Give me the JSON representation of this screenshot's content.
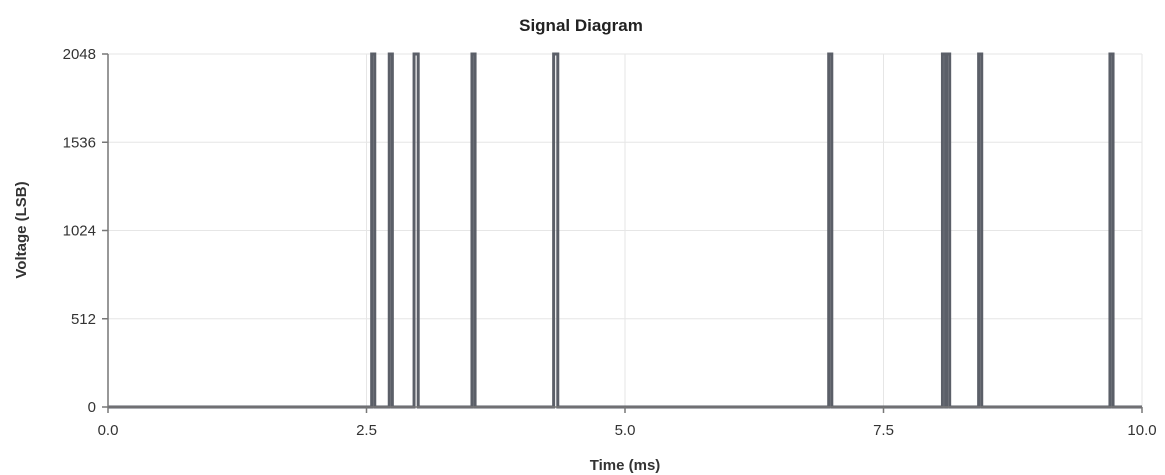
{
  "chart_data": {
    "type": "line",
    "title": "Signal Diagram",
    "xlabel": "Time (ms)",
    "ylabel": "Voltage (LSB)",
    "xlim": [
      0,
      10
    ],
    "ylim": [
      0,
      2048
    ],
    "xticks": [
      "0.0",
      "2.5",
      "5.0",
      "7.5",
      "10.0"
    ],
    "yticks": [
      "0",
      "512",
      "1024",
      "1536",
      "2048"
    ],
    "grid": true,
    "color": "#5b5f68",
    "pulses": [
      [
        2.55,
        2.58
      ],
      [
        2.72,
        2.75
      ],
      [
        2.96,
        3.0
      ],
      [
        3.52,
        3.55
      ],
      [
        4.31,
        4.35
      ],
      [
        6.97,
        7.0
      ],
      [
        8.07,
        8.1
      ],
      [
        8.11,
        8.14
      ],
      [
        8.42,
        8.45
      ],
      [
        9.69,
        9.72
      ]
    ],
    "series": [
      {
        "x": [
          0,
          2.55,
          2.55,
          2.58,
          2.58,
          2.72,
          2.72,
          2.75,
          2.75,
          2.96,
          2.96,
          3.0,
          3.0,
          3.52,
          3.52,
          3.55,
          3.55,
          4.31,
          4.31,
          4.35,
          4.35,
          6.97,
          6.97,
          7.0,
          7.0,
          8.07,
          8.07,
          8.1,
          8.1,
          8.11,
          8.11,
          8.14,
          8.14,
          8.42,
          8.42,
          8.45,
          8.45,
          9.69,
          9.69,
          9.72,
          9.72,
          10
        ],
        "y": [
          0,
          0,
          2048,
          2048,
          0,
          0,
          2048,
          2048,
          0,
          0,
          2048,
          2048,
          0,
          0,
          2048,
          2048,
          0,
          0,
          2048,
          2048,
          0,
          0,
          2048,
          2048,
          0,
          0,
          2048,
          2048,
          0,
          0,
          2048,
          2048,
          0,
          0,
          2048,
          2048,
          0,
          0,
          2048,
          2048,
          0,
          0
        ]
      }
    ]
  }
}
